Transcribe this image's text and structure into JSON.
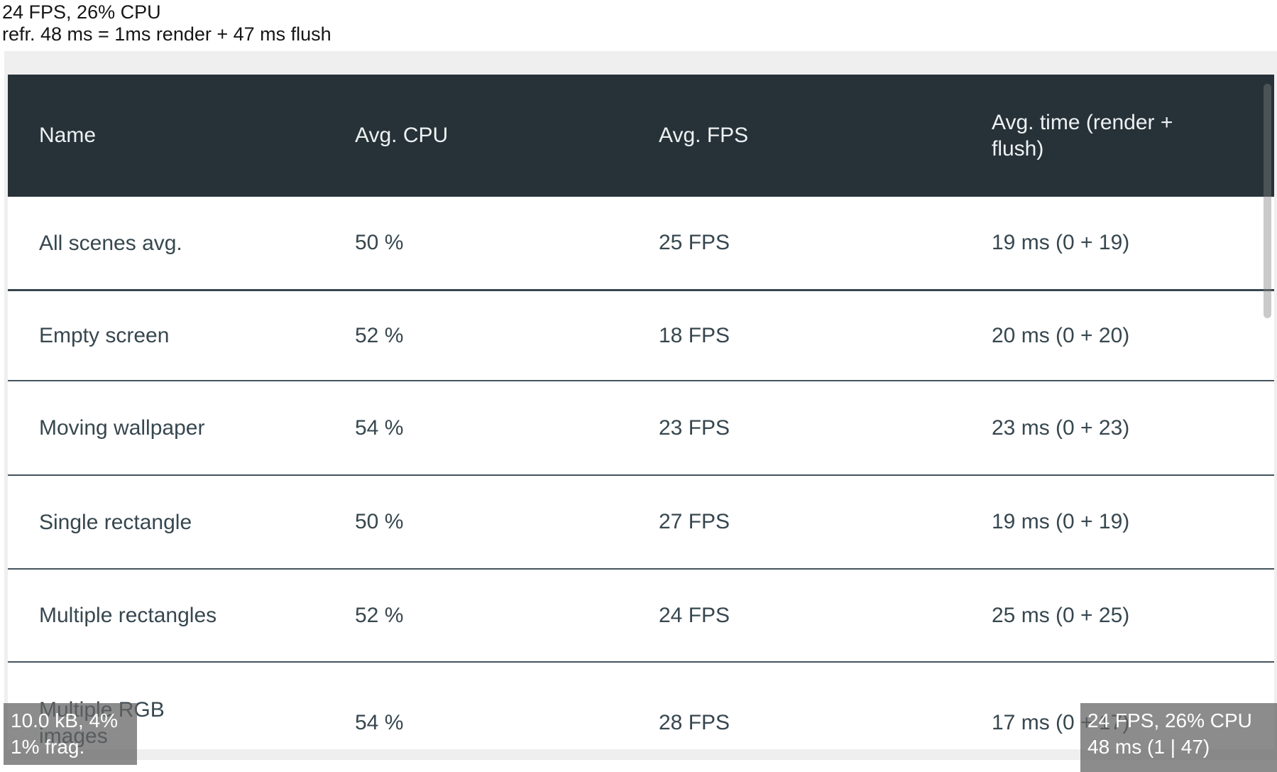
{
  "colors": {
    "page_bg": "#ffffff",
    "panel_bg": "#f0efef",
    "header_bg": "#263238",
    "header_text": "#eef1f2",
    "body_text": "#37474f",
    "separator_strong": "#37474f",
    "separator": "#44545d",
    "overlay_bg": "rgba(100,100,100,0.74)",
    "overlay_text": "#ffffff"
  },
  "perf_note": {
    "line1": "24 FPS, 26% CPU",
    "line2": "refr. 48 ms = 1ms render + 47 ms flush"
  },
  "table": {
    "columns": [
      "Name",
      "Avg. CPU",
      "Avg. FPS",
      "Avg. time (render +\nflush)"
    ],
    "rows": [
      {
        "name": "All scenes avg.",
        "cpu": "50 %",
        "fps": "25 FPS",
        "time": "19 ms (0 + 19)"
      },
      {
        "name": "Empty screen",
        "cpu": "52 %",
        "fps": "18 FPS",
        "time": "20 ms (0 + 20)"
      },
      {
        "name": "Moving wallpaper",
        "cpu": "54 %",
        "fps": "23 FPS",
        "time": "23 ms (0 + 23)"
      },
      {
        "name": "Single rectangle",
        "cpu": "50 %",
        "fps": "27 FPS",
        "time": "19 ms (0 + 19)"
      },
      {
        "name": "Multiple rectangles",
        "cpu": "52 %",
        "fps": "24 FPS",
        "time": "25 ms (0 + 25)"
      },
      {
        "name": "Multiple RGB\nimages",
        "cpu": "54 %",
        "fps": "28 FPS",
        "time": "17 ms (0 + 17)"
      }
    ]
  },
  "overlays": {
    "memory": {
      "line1": "10.0 kB, 4%",
      "line2": "1% frag."
    },
    "fps": {
      "line1": "24 FPS, 26% CPU",
      "line2": "48 ms (1 | 47)"
    }
  }
}
